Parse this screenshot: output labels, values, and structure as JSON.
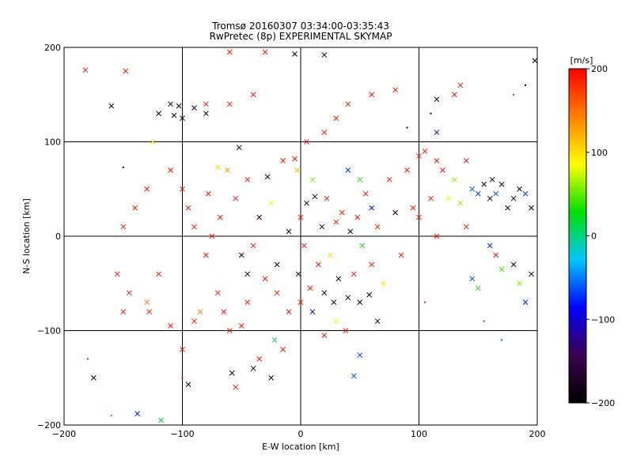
{
  "chart_data": {
    "type": "scatter",
    "title_line1": "Tromsø 20160307 03:34:00-03:35:43",
    "title_line2": "RwPretec (8p) EXPERIMENTAL SKYMAP",
    "xlabel": "E-W location [km]",
    "ylabel": "N-S location [km]",
    "xlim": [
      -200,
      200
    ],
    "ylim": [
      -200,
      200
    ],
    "xticks": [
      -200,
      -100,
      0,
      100,
      200
    ],
    "yticks": [
      -200,
      -100,
      0,
      100,
      200
    ],
    "grid": true,
    "colorbar": {
      "label": "[m/s]",
      "min": -200,
      "max": 200,
      "ticks": [
        200,
        100,
        0,
        -100,
        -200
      ],
      "colormap": [
        "#000000",
        "#3c0050",
        "#0000ff",
        "#00c8ff",
        "#00e000",
        "#ffff00",
        "#ff8000",
        "#ff0000"
      ]
    },
    "points": [
      {
        "x": -182,
        "y": 176,
        "v": 190,
        "m": "x"
      },
      {
        "x": -175,
        "y": -150,
        "v": -190,
        "m": "x"
      },
      {
        "x": -160,
        "y": 138,
        "v": -180,
        "m": "x"
      },
      {
        "x": -150,
        "y": 73,
        "v": -190,
        "m": "dot"
      },
      {
        "x": -148,
        "y": 175,
        "v": 190,
        "m": "x"
      },
      {
        "x": -138,
        "y": -188,
        "v": -80,
        "m": "x"
      },
      {
        "x": -125,
        "y": 100,
        "v": 95,
        "m": "x"
      },
      {
        "x": -128,
        "y": -80,
        "v": 180,
        "m": "x"
      },
      {
        "x": -120,
        "y": 130,
        "v": -190,
        "m": "x"
      },
      {
        "x": -118,
        "y": -195,
        "v": 20,
        "m": "x"
      },
      {
        "x": -110,
        "y": 140,
        "v": -190,
        "m": "x"
      },
      {
        "x": -107,
        "y": 128,
        "v": -180,
        "m": "x"
      },
      {
        "x": -103,
        "y": 138,
        "v": -185,
        "m": "x"
      },
      {
        "x": -100,
        "y": -120,
        "v": 190,
        "m": "x"
      },
      {
        "x": -95,
        "y": -157,
        "v": -190,
        "m": "x"
      },
      {
        "x": -90,
        "y": 136,
        "v": -180,
        "m": "x"
      },
      {
        "x": -80,
        "y": 140,
        "v": 190,
        "m": "x"
      },
      {
        "x": -78,
        "y": 45,
        "v": 190,
        "m": "x"
      },
      {
        "x": -70,
        "y": 73,
        "v": 100,
        "m": "x"
      },
      {
        "x": -62,
        "y": 70,
        "v": 130,
        "m": "x"
      },
      {
        "x": -58,
        "y": -145,
        "v": -185,
        "m": "x"
      },
      {
        "x": -55,
        "y": -160,
        "v": 190,
        "m": "x"
      },
      {
        "x": -52,
        "y": 94,
        "v": -185,
        "m": "x"
      },
      {
        "x": -45,
        "y": 60,
        "v": 190,
        "m": "x"
      },
      {
        "x": -40,
        "y": -10,
        "v": 190,
        "m": "x"
      },
      {
        "x": -35,
        "y": 20,
        "v": -180,
        "m": "x"
      },
      {
        "x": -30,
        "y": -45,
        "v": 190,
        "m": "x"
      },
      {
        "x": -28,
        "y": 63,
        "v": -185,
        "m": "x"
      },
      {
        "x": -25,
        "y": 35,
        "v": 80,
        "m": "x"
      },
      {
        "x": -22,
        "y": -110,
        "v": 10,
        "m": "x"
      },
      {
        "x": -20,
        "y": -30,
        "v": -190,
        "m": "x"
      },
      {
        "x": -15,
        "y": 80,
        "v": 190,
        "m": "x"
      },
      {
        "x": -10,
        "y": 5,
        "v": -180,
        "m": "x"
      },
      {
        "x": -5,
        "y": 82,
        "v": 190,
        "m": "x"
      },
      {
        "x": -3,
        "y": 70,
        "v": 120,
        "m": "x"
      },
      {
        "x": -2,
        "y": -40,
        "v": -185,
        "m": "x"
      },
      {
        "x": 0,
        "y": 20,
        "v": 190,
        "m": "x"
      },
      {
        "x": 3,
        "y": -10,
        "v": 190,
        "m": "x"
      },
      {
        "x": 5,
        "y": 35,
        "v": -180,
        "m": "x"
      },
      {
        "x": 8,
        "y": -55,
        "v": 190,
        "m": "x"
      },
      {
        "x": 10,
        "y": 60,
        "v": 60,
        "m": "x"
      },
      {
        "x": 12,
        "y": 42,
        "v": -185,
        "m": "x"
      },
      {
        "x": 15,
        "y": -30,
        "v": 190,
        "m": "x"
      },
      {
        "x": 18,
        "y": 10,
        "v": -180,
        "m": "x"
      },
      {
        "x": 20,
        "y": -60,
        "v": -190,
        "m": "x"
      },
      {
        "x": 22,
        "y": 40,
        "v": 190,
        "m": "x"
      },
      {
        "x": 25,
        "y": -20,
        "v": 100,
        "m": "x"
      },
      {
        "x": 28,
        "y": -70,
        "v": -185,
        "m": "x"
      },
      {
        "x": 30,
        "y": 15,
        "v": 190,
        "m": "x"
      },
      {
        "x": 32,
        "y": -45,
        "v": -180,
        "m": "x"
      },
      {
        "x": 35,
        "y": 25,
        "v": 190,
        "m": "x"
      },
      {
        "x": 38,
        "y": -100,
        "v": 190,
        "m": "x"
      },
      {
        "x": 40,
        "y": -65,
        "v": -190,
        "m": "x"
      },
      {
        "x": 42,
        "y": 5,
        "v": -185,
        "m": "x"
      },
      {
        "x": 45,
        "y": -40,
        "v": 190,
        "m": "x"
      },
      {
        "x": 48,
        "y": 20,
        "v": 190,
        "m": "x"
      },
      {
        "x": 50,
        "y": -70,
        "v": -190,
        "m": "x"
      },
      {
        "x": 52,
        "y": -10,
        "v": 20,
        "m": "x"
      },
      {
        "x": 55,
        "y": 45,
        "v": 190,
        "m": "x"
      },
      {
        "x": 58,
        "y": -62,
        "v": -185,
        "m": "x"
      },
      {
        "x": 60,
        "y": -30,
        "v": 190,
        "m": "x"
      },
      {
        "x": 45,
        "y": -148,
        "v": -60,
        "m": "x"
      },
      {
        "x": 50,
        "y": -126,
        "v": -70,
        "m": "x"
      },
      {
        "x": 65,
        "y": 10,
        "v": 190,
        "m": "x"
      },
      {
        "x": 70,
        "y": -50,
        "v": 80,
        "m": "x"
      },
      {
        "x": 75,
        "y": 60,
        "v": 190,
        "m": "x"
      },
      {
        "x": 80,
        "y": 25,
        "v": -185,
        "m": "x"
      },
      {
        "x": 90,
        "y": 70,
        "v": 190,
        "m": "x"
      },
      {
        "x": 95,
        "y": 30,
        "v": 190,
        "m": "x"
      },
      {
        "x": 100,
        "y": 85,
        "v": 190,
        "m": "x"
      },
      {
        "x": 105,
        "y": 90,
        "v": 190,
        "m": "x"
      },
      {
        "x": 115,
        "y": 80,
        "v": 190,
        "m": "x"
      },
      {
        "x": 115,
        "y": 110,
        "v": -80,
        "m": "x"
      },
      {
        "x": 115,
        "y": 0,
        "v": 190,
        "m": "x"
      },
      {
        "x": 120,
        "y": 70,
        "v": 190,
        "m": "x"
      },
      {
        "x": 125,
        "y": 40,
        "v": 80,
        "m": "x"
      },
      {
        "x": 130,
        "y": 60,
        "v": 60,
        "m": "x"
      },
      {
        "x": 135,
        "y": 35,
        "v": 60,
        "m": "x"
      },
      {
        "x": 140,
        "y": 80,
        "v": 190,
        "m": "x"
      },
      {
        "x": 145,
        "y": 50,
        "v": -60,
        "m": "x"
      },
      {
        "x": 150,
        "y": 45,
        "v": -70,
        "m": "x"
      },
      {
        "x": 155,
        "y": 55,
        "v": -185,
        "m": "x"
      },
      {
        "x": 160,
        "y": 40,
        "v": -190,
        "m": "x"
      },
      {
        "x": 162,
        "y": 60,
        "v": -185,
        "m": "x"
      },
      {
        "x": 165,
        "y": 45,
        "v": -60,
        "m": "x"
      },
      {
        "x": 170,
        "y": 55,
        "v": -190,
        "m": "x"
      },
      {
        "x": 175,
        "y": 30,
        "v": -185,
        "m": "x"
      },
      {
        "x": 180,
        "y": 40,
        "v": -190,
        "m": "x"
      },
      {
        "x": 185,
        "y": 50,
        "v": -180,
        "m": "x"
      },
      {
        "x": 190,
        "y": 45,
        "v": -70,
        "m": "x"
      },
      {
        "x": 195,
        "y": 30,
        "v": -190,
        "m": "x"
      },
      {
        "x": 198,
        "y": 186,
        "v": -190,
        "m": "x"
      },
      {
        "x": 160,
        "y": -10,
        "v": -80,
        "m": "x"
      },
      {
        "x": 165,
        "y": -20,
        "v": 190,
        "m": "x"
      },
      {
        "x": 170,
        "y": -35,
        "v": 40,
        "m": "x"
      },
      {
        "x": 180,
        "y": -30,
        "v": -185,
        "m": "x"
      },
      {
        "x": 185,
        "y": -50,
        "v": 60,
        "m": "x"
      },
      {
        "x": 190,
        "y": -70,
        "v": -80,
        "m": "x"
      },
      {
        "x": 195,
        "y": -40,
        "v": -190,
        "m": "x"
      },
      {
        "x": 145,
        "y": -45,
        "v": -60,
        "m": "x"
      },
      {
        "x": 150,
        "y": -55,
        "v": 40,
        "m": "x"
      },
      {
        "x": 140,
        "y": 10,
        "v": 190,
        "m": "x"
      },
      {
        "x": 130,
        "y": 150,
        "v": 190,
        "m": "x"
      },
      {
        "x": 135,
        "y": 160,
        "v": 190,
        "m": "x"
      },
      {
        "x": 115,
        "y": 145,
        "v": -185,
        "m": "x"
      },
      {
        "x": 20,
        "y": 192,
        "v": -185,
        "m": "x"
      },
      {
        "x": -5,
        "y": 193,
        "v": -190,
        "m": "x"
      },
      {
        "x": -60,
        "y": 195,
        "v": 190,
        "m": "x"
      },
      {
        "x": -30,
        "y": 195,
        "v": 190,
        "m": "x"
      },
      {
        "x": -150,
        "y": -80,
        "v": 190,
        "m": "x"
      },
      {
        "x": -145,
        "y": -60,
        "v": 190,
        "m": "x"
      },
      {
        "x": -130,
        "y": -70,
        "v": 140,
        "m": "x"
      },
      {
        "x": -120,
        "y": -40,
        "v": 190,
        "m": "x"
      },
      {
        "x": -110,
        "y": -95,
        "v": 190,
        "m": "x"
      },
      {
        "x": -90,
        "y": -90,
        "v": 190,
        "m": "x"
      },
      {
        "x": -85,
        "y": -80,
        "v": 140,
        "m": "x"
      },
      {
        "x": -70,
        "y": -60,
        "v": 190,
        "m": "x"
      },
      {
        "x": -65,
        "y": -80,
        "v": 190,
        "m": "x"
      },
      {
        "x": -60,
        "y": -100,
        "v": 190,
        "m": "x"
      },
      {
        "x": -50,
        "y": -95,
        "v": 190,
        "m": "x"
      },
      {
        "x": -45,
        "y": -70,
        "v": 190,
        "m": "x"
      },
      {
        "x": -40,
        "y": -140,
        "v": -185,
        "m": "x"
      },
      {
        "x": -35,
        "y": -130,
        "v": 190,
        "m": "x"
      },
      {
        "x": -25,
        "y": -150,
        "v": -190,
        "m": "x"
      },
      {
        "x": -15,
        "y": -120,
        "v": 190,
        "m": "x"
      },
      {
        "x": -130,
        "y": 50,
        "v": 190,
        "m": "x"
      },
      {
        "x": -140,
        "y": 30,
        "v": 190,
        "m": "x"
      },
      {
        "x": -150,
        "y": 10,
        "v": 190,
        "m": "x"
      },
      {
        "x": -155,
        "y": -40,
        "v": 190,
        "m": "x"
      },
      {
        "x": -110,
        "y": 70,
        "v": 190,
        "m": "x"
      },
      {
        "x": -100,
        "y": 50,
        "v": 190,
        "m": "x"
      },
      {
        "x": -95,
        "y": 30,
        "v": 190,
        "m": "x"
      },
      {
        "x": -90,
        "y": 10,
        "v": 190,
        "m": "x"
      },
      {
        "x": -80,
        "y": -20,
        "v": 190,
        "m": "x"
      },
      {
        "x": -75,
        "y": 0,
        "v": 190,
        "m": "x"
      },
      {
        "x": -68,
        "y": 20,
        "v": 190,
        "m": "x"
      },
      {
        "x": -55,
        "y": 40,
        "v": 190,
        "m": "x"
      },
      {
        "x": -50,
        "y": -20,
        "v": -180,
        "m": "x"
      },
      {
        "x": -45,
        "y": -40,
        "v": -190,
        "m": "x"
      },
      {
        "x": 65,
        "y": -90,
        "v": -185,
        "m": "x"
      },
      {
        "x": 85,
        "y": -20,
        "v": 190,
        "m": "x"
      },
      {
        "x": 100,
        "y": 20,
        "v": 190,
        "m": "x"
      },
      {
        "x": 110,
        "y": 40,
        "v": 190,
        "m": "x"
      },
      {
        "x": 0,
        "y": -70,
        "v": 190,
        "m": "x"
      },
      {
        "x": -10,
        "y": -80,
        "v": 190,
        "m": "x"
      },
      {
        "x": -20,
        "y": -60,
        "v": 190,
        "m": "x"
      },
      {
        "x": 10,
        "y": -80,
        "v": -80,
        "m": "x"
      },
      {
        "x": 30,
        "y": -90,
        "v": 80,
        "m": "x"
      },
      {
        "x": 20,
        "y": -105,
        "v": 190,
        "m": "x"
      },
      {
        "x": 5,
        "y": 100,
        "v": 190,
        "m": "x"
      },
      {
        "x": 20,
        "y": 110,
        "v": 190,
        "m": "x"
      },
      {
        "x": 30,
        "y": 125,
        "v": 190,
        "m": "x"
      },
      {
        "x": 40,
        "y": 140,
        "v": 190,
        "m": "x"
      },
      {
        "x": 60,
        "y": 150,
        "v": 190,
        "m": "x"
      },
      {
        "x": 80,
        "y": 155,
        "v": 190,
        "m": "x"
      },
      {
        "x": -40,
        "y": 150,
        "v": 190,
        "m": "x"
      },
      {
        "x": -60,
        "y": 140,
        "v": 190,
        "m": "x"
      },
      {
        "x": -80,
        "y": 130,
        "v": -185,
        "m": "x"
      },
      {
        "x": 40,
        "y": 70,
        "v": -70,
        "m": "x"
      },
      {
        "x": 50,
        "y": 60,
        "v": 40,
        "m": "x"
      },
      {
        "x": 60,
        "y": 30,
        "v": -80,
        "m": "x"
      },
      {
        "x": -100,
        "y": 125,
        "v": -185,
        "m": "x"
      },
      {
        "x": -180,
        "y": -130,
        "v": 190,
        "m": "dot"
      },
      {
        "x": -160,
        "y": -190,
        "v": 20,
        "m": "dot"
      },
      {
        "x": -100,
        "y": -150,
        "v": 190,
        "m": "dot"
      },
      {
        "x": 105,
        "y": -70,
        "v": 190,
        "m": "dot"
      },
      {
        "x": 155,
        "y": -90,
        "v": 190,
        "m": "dot"
      },
      {
        "x": 170,
        "y": -110,
        "v": -60,
        "m": "dot"
      },
      {
        "x": 190,
        "y": 160,
        "v": -190,
        "m": "dot"
      },
      {
        "x": 180,
        "y": 150,
        "v": 190,
        "m": "dot"
      },
      {
        "x": 90,
        "y": 115,
        "v": -190,
        "m": "dot"
      },
      {
        "x": 110,
        "y": 130,
        "v": -185,
        "m": "dot"
      }
    ]
  }
}
